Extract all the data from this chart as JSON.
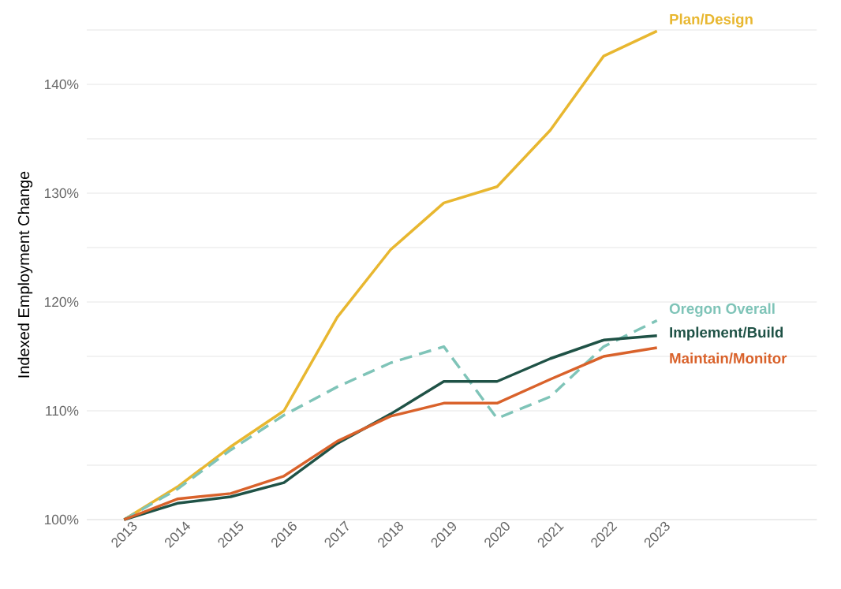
{
  "chart_data": {
    "type": "line",
    "ylabel": "Indexed Employment Change",
    "x": [
      2013,
      2014,
      2015,
      2016,
      2017,
      2018,
      2019,
      2020,
      2021,
      2022,
      2023
    ],
    "series": [
      {
        "name": "Plan/Design",
        "color": "#e8b730",
        "values": [
          100,
          103.0,
          106.7,
          110.0,
          118.6,
          124.8,
          129.1,
          130.6,
          135.8,
          142.6,
          144.9
        ]
      },
      {
        "name": "Oregon Overall",
        "color": "#7fc4b8",
        "line_style": "dashed",
        "values": [
          100,
          102.8,
          106.4,
          109.6,
          112.2,
          114.4,
          115.9,
          109.3,
          111.3,
          115.9,
          118.3
        ]
      },
      {
        "name": "Implement/Build",
        "color": "#1f5246",
        "values": [
          100,
          101.5,
          102.1,
          103.4,
          107.0,
          109.7,
          112.7,
          112.7,
          114.8,
          116.5,
          116.9
        ]
      },
      {
        "name": "Maintain/Monitor",
        "color": "#d9622b",
        "values": [
          100,
          101.9,
          102.4,
          104.0,
          107.2,
          109.5,
          110.7,
          110.7,
          112.9,
          115.0,
          115.8
        ]
      }
    ],
    "xlim": [
      2012.3,
      2026
    ],
    "ylim": [
      100,
      145
    ],
    "xticks": [
      2013,
      2014,
      2015,
      2016,
      2017,
      2018,
      2019,
      2020,
      2021,
      2022,
      2023
    ],
    "yticks": [
      {
        "value": 100,
        "label": "100%"
      },
      {
        "value": 105,
        "label": null
      },
      {
        "value": 110,
        "label": "110%"
      },
      {
        "value": 115,
        "label": null
      },
      {
        "value": 120,
        "label": "120%"
      },
      {
        "value": 125,
        "label": null
      },
      {
        "value": 130,
        "label": "130%"
      },
      {
        "value": 135,
        "label": null
      },
      {
        "value": 140,
        "label": "140%"
      },
      {
        "value": 145,
        "label": null
      }
    ],
    "grid": "y",
    "legend": false,
    "marker": "none",
    "line_style": "solid"
  }
}
